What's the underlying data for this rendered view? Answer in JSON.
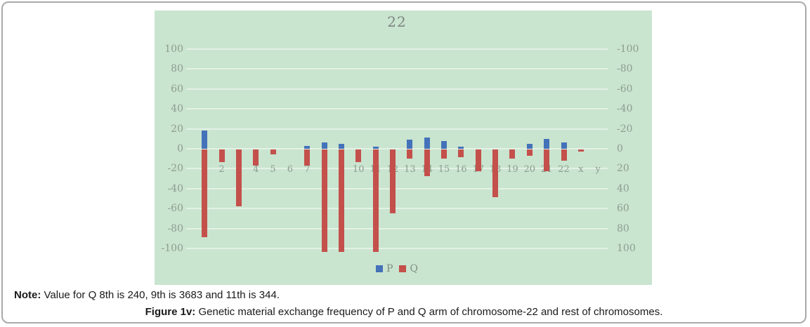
{
  "note": {
    "label": "Note:",
    "text": "Value for Q 8th is 240, 9th is 3683 and 11th is 344."
  },
  "caption": {
    "label": "Figure 1v:",
    "text": "Genetic material exchange frequency of P and Q arm of chromosome-22 and rest of chromosomes."
  },
  "chart_data": {
    "type": "bar",
    "title": "22",
    "categories": [
      "1",
      "2",
      "3",
      "4",
      "5",
      "6",
      "7",
      "8",
      "9",
      "10",
      "11",
      "12",
      "13",
      "14",
      "15",
      "16",
      "17",
      "18",
      "19",
      "20",
      "21",
      "22",
      "x",
      "y"
    ],
    "series": [
      {
        "name": "P",
        "color": "#4472b9",
        "axis": "left-primary (0 at center, positive up)",
        "direction": "up",
        "values": [
          18,
          0,
          0,
          0,
          0,
          0,
          3,
          6,
          5,
          0,
          2,
          0,
          9,
          11,
          8,
          2,
          0,
          0,
          0,
          5,
          10,
          6,
          0,
          0
        ]
      },
      {
        "name": "Q",
        "color": "#c3504b",
        "axis": "right-secondary (inverted: positive plotted downward)",
        "direction": "down",
        "values": [
          88,
          13,
          57,
          16,
          5,
          0,
          16,
          240,
          3683,
          13,
          344,
          64,
          9,
          27,
          9,
          8,
          22,
          48,
          9,
          6,
          22,
          11,
          2,
          0
        ],
        "display_values": [
          88,
          13,
          57,
          16,
          5,
          0,
          16,
          103,
          103,
          13,
          103,
          64,
          9,
          27,
          9,
          8,
          22,
          48,
          9,
          6,
          22,
          11,
          2,
          0
        ],
        "clip_note": "Q values for chromosomes 8, 9 and 11 (240, 3683, 344) exceed the 100 axis limit and are clipped at the chart bottom"
      }
    ],
    "left_axis_ticks": [
      100,
      80,
      60,
      40,
      20,
      0,
      -20,
      -40,
      -60,
      -80,
      -100
    ],
    "right_axis_ticks": [
      -100,
      -80,
      -60,
      -40,
      -20,
      0,
      20,
      40,
      60,
      80,
      100
    ],
    "legend_position": "bottom-center",
    "grid": "horizontal white gridlines every 20 units",
    "ylim_left": [
      -100,
      100
    ],
    "colors": {
      "panel_bg": "#c9e4cf",
      "grid": "#e4f1e6",
      "axis_text": "#8d9d91",
      "title_text": "#7d857f",
      "legend_text": "#7f8f83"
    }
  }
}
